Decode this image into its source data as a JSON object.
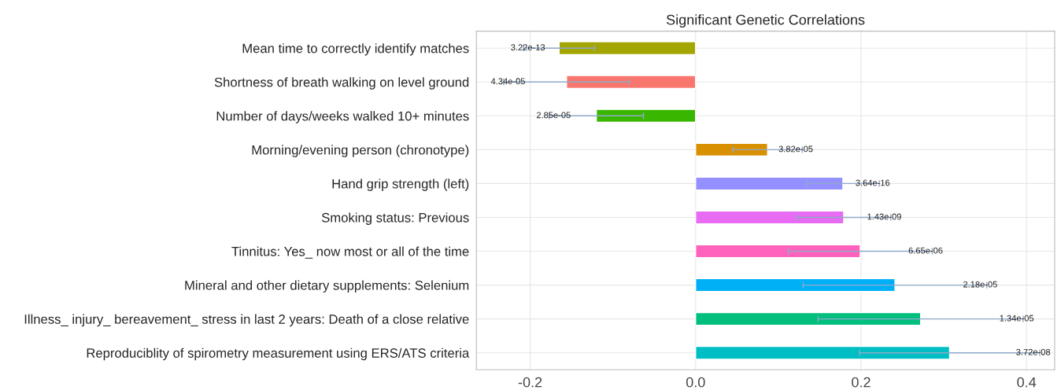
{
  "chart_data": {
    "type": "bar",
    "orientation": "horizontal",
    "title": "Significant Genetic Correlations",
    "categories": [
      "Mean time to correctly identify matches",
      "Shortness of breath walking on level ground",
      "Number of days/weeks walked 10+ minutes",
      "Morning/evening person (chronotype)",
      "Hand grip strength (left)",
      "Smoking status: Previous",
      "Tinnitus: Yes_ now most or all of the time",
      "Mineral and other dietary supplements: Selenium",
      "Illness_ injury_ bereavement_ stress in last 2 years: Death of a close relative",
      "Reproduciblity of spirometry measurement using ERS/ATS criteria"
    ],
    "values": [
      -0.165,
      -0.156,
      -0.12,
      0.087,
      0.178,
      0.179,
      0.199,
      0.241,
      0.272,
      0.307
    ],
    "errors": [
      0.043,
      0.076,
      0.057,
      0.042,
      0.044,
      0.057,
      0.087,
      0.111,
      0.124,
      0.109
    ],
    "colors": [
      "#a3a500",
      "#f8766d",
      "#39b600",
      "#d89000",
      "#9590ff",
      "#e76bf3",
      "#ff62bc",
      "#00b0f6",
      "#00bf7d",
      "#00bfc4"
    ],
    "annotations": [
      {
        "text": "3.22e-13",
        "x": -0.208,
        "y": "Mean time to correctly identify matches"
      },
      {
        "text": "4.34e-05",
        "x": -0.232,
        "y": "Shortness of breath walking on level ground"
      },
      {
        "text": "2.85e-05",
        "x": -0.177,
        "y": "Number of days/weeks walked 10+ minutes"
      },
      {
        "text": "3.82e-05",
        "x": 0.129,
        "y": "Morning/evening person (chronotype)"
      },
      {
        "text": "3.64e-16",
        "x": 0.222,
        "y": "Hand grip strength (left)"
      },
      {
        "text": "1.43e-09",
        "x": 0.236,
        "y": "Smoking status: Previous"
      },
      {
        "text": "6.65e-06",
        "x": 0.286,
        "y": "Tinnitus: Yes_ now most or all of the time"
      },
      {
        "text": "2.18e-05",
        "x": 0.352,
        "y": "Mineral and other dietary supplements: Selenium"
      },
      {
        "text": "1.34e-05",
        "x": 0.396,
        "y": "Illness_ injury_ bereavement_ stress in last 2 years: Death of a close relative"
      },
      {
        "text": "3.72e-08",
        "x": 0.416,
        "y": "Reproduciblity of spirometry measurement using ERS/ATS criteria"
      }
    ],
    "xlim": [
      -0.265,
      0.434
    ],
    "xticks": [
      {
        "value": -0.2,
        "label": "-0.2"
      },
      {
        "value": 0,
        "label": "0.0"
      },
      {
        "value": 0.2,
        "label": "0.2"
      },
      {
        "value": 0.4,
        "label": "0.4"
      }
    ],
    "grid": true
  }
}
